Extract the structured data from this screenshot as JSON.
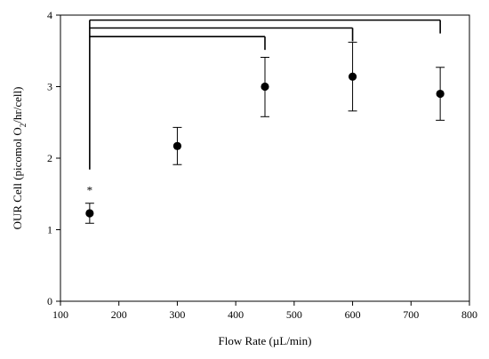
{
  "chart_data": {
    "type": "scatter",
    "title": "",
    "xlabel": "Flow Rate (µL/min)",
    "ylabel": {
      "main": "OUR Cell (picomol O",
      "subscript": "2",
      "tail": "/hr/cell)"
    },
    "xlim": [
      100,
      800
    ],
    "ylim": [
      0,
      4
    ],
    "xticks": [
      100,
      200,
      300,
      400,
      500,
      600,
      700,
      800
    ],
    "yticks": [
      0,
      1,
      2,
      3,
      4
    ],
    "grid": false,
    "legend": "none",
    "marker_color": "#000000",
    "points": [
      {
        "x": 150,
        "y": 1.23,
        "err_low": 1.09,
        "err_high": 1.37
      },
      {
        "x": 300,
        "y": 2.17,
        "err_low": 1.91,
        "err_high": 2.43
      },
      {
        "x": 450,
        "y": 3.0,
        "err_low": 2.58,
        "err_high": 3.41
      },
      {
        "x": 600,
        "y": 3.14,
        "err_low": 2.66,
        "err_high": 3.62
      },
      {
        "x": 750,
        "y": 2.9,
        "err_low": 2.53,
        "err_high": 3.27
      }
    ],
    "significance": {
      "marker": "*",
      "from_x": 150,
      "bracket_levels": [
        {
          "to_x": 450,
          "y": 3.7
        },
        {
          "to_x": 600,
          "y": 3.82
        },
        {
          "to_x": 750,
          "y": 3.93
        }
      ]
    }
  }
}
